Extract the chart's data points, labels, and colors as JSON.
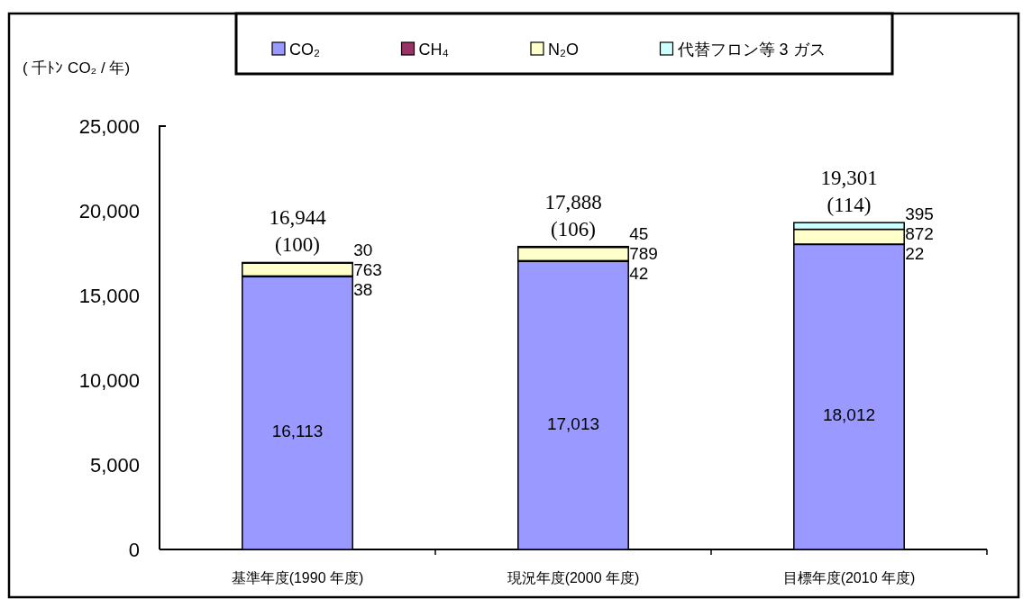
{
  "chart_data": {
    "type": "bar",
    "stacked": true,
    "ylabel": "( 千ﾄﾝ CO₂ / 年)",
    "categories": [
      "基準年度(1990 年度)",
      "現況年度(2000 年度)",
      "目標年度(2010 年度)"
    ],
    "series": [
      {
        "name": "CO₂",
        "color": "#9999ff",
        "values": [
          16113,
          17013,
          18012
        ],
        "value_labels": [
          "16,113",
          "17,013",
          "18,012"
        ]
      },
      {
        "name": "CH₄",
        "color": "#993366",
        "values": [
          38,
          42,
          22
        ],
        "value_labels": [
          "38",
          "42",
          "22"
        ]
      },
      {
        "name": "N₂O",
        "color": "#ffffcc",
        "values": [
          763,
          789,
          872
        ],
        "value_labels": [
          "763",
          "789",
          "872"
        ]
      },
      {
        "name": "代替フロン等 3 ガス",
        "color": "#ccffff",
        "values": [
          30,
          45,
          395
        ],
        "value_labels": [
          "30",
          "45",
          "395"
        ]
      }
    ],
    "ylim": [
      0,
      25000
    ],
    "yticks": [
      0,
      {
        "value": 5000,
        "label": "5,000"
      },
      {
        "value": 10000,
        "label": "10,000"
      },
      {
        "value": 15000,
        "label": "15,000"
      },
      {
        "value": 20000,
        "label": "20,000"
      },
      {
        "value": 25000,
        "label": "25,000"
      }
    ],
    "totals": [
      "16,944\n(100)",
      "17,888\n(106)",
      "19,301\n(114)"
    ],
    "legend": "top"
  }
}
